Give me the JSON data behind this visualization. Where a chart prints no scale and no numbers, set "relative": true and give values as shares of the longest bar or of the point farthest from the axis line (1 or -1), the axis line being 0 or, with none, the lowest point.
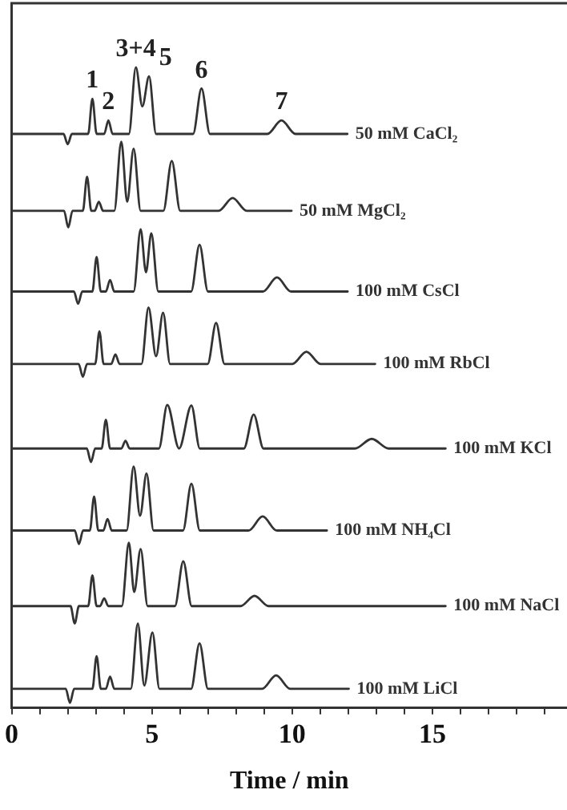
{
  "chart_data": {
    "type": "line",
    "relative": true,
    "xlabel": "Time / min",
    "xlim": [
      0,
      19.8
    ],
    "xticks": [
      0,
      {
        "value": 1,
        "label": null
      },
      {
        "value": 2,
        "label": null
      },
      {
        "value": 3,
        "label": null
      },
      {
        "value": 4,
        "label": null
      },
      5,
      {
        "value": 6,
        "label": null
      },
      {
        "value": 7,
        "label": null
      },
      {
        "value": 8,
        "label": null
      },
      {
        "value": 9,
        "label": null
      },
      10,
      {
        "value": 11,
        "label": null
      },
      {
        "value": 12,
        "label": null
      },
      {
        "value": 13,
        "label": null
      },
      {
        "value": 14,
        "label": null
      },
      15,
      {
        "value": 16,
        "label": null
      },
      {
        "value": 17,
        "label": null
      },
      {
        "value": 18,
        "label": null
      },
      {
        "value": 19,
        "label": null
      }
    ],
    "grid": false,
    "legend": false,
    "marker": "none",
    "line_style": "solid",
    "series": [
      {
        "name": "50 mM CaCl₂",
        "color": "#333333",
        "x": [
          0,
          1.85,
          2.0,
          2.15,
          2.73,
          2.88,
          3.03,
          3.3,
          3.45,
          3.6,
          4.18,
          4.43,
          4.66,
          4.9,
          5.15,
          6.47,
          6.77,
          7.07,
          9.12,
          9.62,
          10.12,
          11.97
        ],
        "values": [
          0.896,
          0.896,
          0.88,
          0.896,
          0.896,
          0.951,
          0.896,
          0.896,
          0.917,
          0.896,
          0.896,
          1.0,
          0.939,
          0.986,
          0.896,
          0.896,
          0.967,
          0.896,
          0.896,
          0.917,
          0.896,
          0.896
        ]
      },
      {
        "name": "50 mM MgCl₂",
        "color": "#333333",
        "x": [
          0,
          1.87,
          2.02,
          2.17,
          2.54,
          2.69,
          2.84,
          2.96,
          3.11,
          3.26,
          3.66,
          3.91,
          4.12,
          4.35,
          4.6,
          5.41,
          5.71,
          6.01,
          7.38,
          7.88,
          8.38,
          9.98
        ],
        "values": [
          0.776,
          0.776,
          0.75,
          0.776,
          0.776,
          0.829,
          0.776,
          0.776,
          0.79,
          0.776,
          0.776,
          0.884,
          0.79,
          0.873,
          0.776,
          0.776,
          0.854,
          0.776,
          0.776,
          0.796,
          0.776,
          0.776
        ]
      },
      {
        "name": "100 mM CsCl",
        "color": "#333333",
        "x": [
          0,
          2.22,
          2.37,
          2.52,
          2.88,
          3.03,
          3.18,
          3.36,
          3.51,
          3.66,
          4.35,
          4.6,
          4.79,
          4.98,
          5.23,
          6.4,
          6.7,
          7.0,
          8.96,
          9.46,
          9.96,
          11.98
        ],
        "values": [
          0.65,
          0.65,
          0.631,
          0.65,
          0.65,
          0.704,
          0.65,
          0.65,
          0.668,
          0.65,
          0.65,
          0.747,
          0.68,
          0.741,
          0.65,
          0.65,
          0.723,
          0.65,
          0.65,
          0.672,
          0.65,
          0.65
        ]
      },
      {
        "name": "100 mM RbCl",
        "color": "#333333",
        "x": [
          0,
          2.39,
          2.54,
          2.69,
          2.98,
          3.13,
          3.28,
          3.55,
          3.7,
          3.85,
          4.63,
          4.88,
          5.15,
          5.4,
          5.65,
          6.99,
          7.29,
          7.59,
          10.01,
          10.51,
          11.01,
          12.96
        ],
        "values": [
          0.537,
          0.537,
          0.517,
          0.537,
          0.537,
          0.588,
          0.537,
          0.537,
          0.552,
          0.537,
          0.537,
          0.625,
          0.549,
          0.617,
          0.537,
          0.537,
          0.601,
          0.537,
          0.537,
          0.556,
          0.537,
          0.537
        ]
      },
      {
        "name": "100 mM KCl",
        "color": "#333333",
        "x": [
          0,
          2.68,
          2.83,
          2.98,
          3.21,
          3.36,
          3.51,
          3.91,
          4.06,
          4.21,
          5.25,
          5.55,
          5.97,
          6.41,
          6.71,
          8.28,
          8.63,
          8.98,
          12.24,
          12.84,
          13.44,
          15.47
        ],
        "values": [
          0.405,
          0.405,
          0.384,
          0.405,
          0.405,
          0.45,
          0.405,
          0.405,
          0.417,
          0.405,
          0.405,
          0.473,
          0.405,
          0.472,
          0.405,
          0.405,
          0.458,
          0.405,
          0.405,
          0.42,
          0.405,
          0.405
        ]
      },
      {
        "name": "100 mM NH₄Cl",
        "color": "#333333",
        "x": [
          0,
          2.25,
          2.4,
          2.55,
          2.79,
          2.94,
          3.09,
          3.27,
          3.42,
          3.57,
          4.1,
          4.35,
          4.58,
          4.81,
          5.06,
          6.11,
          6.41,
          6.71,
          8.45,
          8.95,
          9.45,
          11.24
        ],
        "values": [
          0.277,
          0.277,
          0.256,
          0.277,
          0.277,
          0.33,
          0.277,
          0.277,
          0.295,
          0.277,
          0.277,
          0.377,
          0.3,
          0.366,
          0.277,
          0.277,
          0.35,
          0.277,
          0.277,
          0.299,
          0.277,
          0.277
        ]
      },
      {
        "name": "100 mM NaCl",
        "color": "#333333",
        "x": [
          0,
          2.1,
          2.25,
          2.4,
          2.73,
          2.88,
          3.03,
          3.15,
          3.3,
          3.45,
          3.93,
          4.18,
          4.37,
          4.6,
          4.85,
          5.82,
          6.12,
          6.42,
          8.16,
          8.66,
          9.16,
          15.47
        ],
        "values": [
          0.159,
          0.159,
          0.132,
          0.159,
          0.159,
          0.207,
          0.159,
          0.159,
          0.171,
          0.159,
          0.159,
          0.258,
          0.181,
          0.248,
          0.159,
          0.159,
          0.229,
          0.159,
          0.159,
          0.175,
          0.159,
          0.159
        ]
      },
      {
        "name": "100 mM LiCl",
        "color": "#333333",
        "x": [
          0,
          1.93,
          2.08,
          2.23,
          2.88,
          3.03,
          3.18,
          3.36,
          3.51,
          3.66,
          4.25,
          4.5,
          4.73,
          5.02,
          5.27,
          6.4,
          6.7,
          7.0,
          8.93,
          9.43,
          9.93,
          12.02
        ],
        "values": [
          0.03,
          0.03,
          0.008,
          0.03,
          0.03,
          0.081,
          0.03,
          0.03,
          0.049,
          0.03,
          0.03,
          0.132,
          0.035,
          0.118,
          0.03,
          0.03,
          0.101,
          0.03,
          0.03,
          0.051,
          0.03,
          0.03
        ]
      }
    ],
    "annotations": [
      {
        "text": "1",
        "x": 2.88,
        "y": 0.951
      },
      {
        "text": "2",
        "x": 3.45,
        "y": 0.917
      },
      {
        "text": "3+4",
        "x": 4.43,
        "y": 1.0
      },
      {
        "text": "5",
        "x": 4.9,
        "y": 0.986
      },
      {
        "text": "6",
        "x": 6.77,
        "y": 0.967
      },
      {
        "text": "7",
        "x": 9.62,
        "y": 0.917
      }
    ]
  }
}
